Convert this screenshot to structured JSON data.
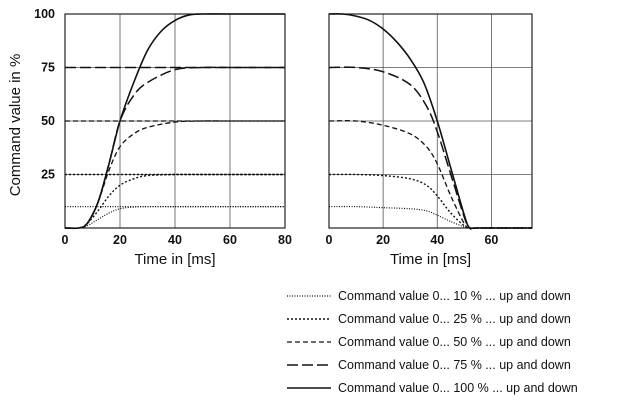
{
  "chart_data": [
    {
      "type": "line",
      "panel": "up",
      "xlabel": "Time in [ms]",
      "ylabel": "Command value in %",
      "xlim": [
        0,
        80
      ],
      "ylim": [
        0,
        100
      ],
      "xticks": [
        "0",
        "20",
        "40",
        "60",
        "80"
      ],
      "yticks": [
        "25",
        "50",
        "75",
        "100"
      ],
      "grid": true,
      "series": [
        {
          "name": "Command value 0... 10 % ... up and down",
          "x": [
            0,
            5,
            8,
            12,
            16,
            20,
            25,
            30,
            40,
            50,
            60,
            80
          ],
          "y": [
            10,
            10,
            10,
            10,
            10,
            10,
            10,
            10,
            10,
            10,
            10,
            10
          ]
        },
        {
          "name": "Command value 0... 25 % ... up and down",
          "x": [
            0,
            5,
            8,
            12,
            16,
            20,
            25,
            30,
            40,
            50,
            60,
            80
          ],
          "y": [
            25,
            25,
            25,
            25,
            25,
            25,
            25,
            25,
            25,
            25,
            25,
            25
          ]
        },
        {
          "name": "Command value 0... 50 % ... up and down",
          "x": [
            0,
            5,
            8,
            12,
            16,
            20,
            25,
            30,
            40,
            50,
            60,
            80
          ],
          "y": [
            50,
            50,
            50,
            50,
            50,
            50,
            50,
            50,
            50,
            50,
            50,
            50
          ]
        },
        {
          "name": "Command value 0... 75 % ... up and down",
          "x": [
            0,
            5,
            8,
            12,
            16,
            20,
            25,
            30,
            40,
            50,
            60,
            80
          ],
          "y": [
            75,
            75,
            75,
            75,
            75,
            75,
            75,
            75,
            75,
            75,
            75,
            75
          ]
        },
        {
          "name": "Command value 0... 100 % ... up and down",
          "x": [
            0,
            5,
            8,
            12,
            16,
            20,
            25,
            30,
            35,
            40,
            45,
            50,
            60,
            80
          ],
          "y": [
            0,
            0,
            2,
            12,
            30,
            50,
            68,
            83,
            92,
            97,
            99.5,
            100,
            100,
            100
          ]
        }
      ],
      "ramps": [
        {
          "level": 10,
          "x": [
            0,
            5,
            8,
            12,
            16,
            20,
            25,
            30,
            40,
            50,
            60,
            80
          ],
          "y": [
            0,
            0,
            1,
            4,
            7,
            9,
            9.8,
            10,
            10,
            10,
            10,
            10
          ]
        },
        {
          "level": 25,
          "x": [
            0,
            5,
            8,
            12,
            16,
            20,
            25,
            30,
            40,
            50,
            60,
            80
          ],
          "y": [
            0,
            0,
            2,
            8,
            15,
            20,
            23,
            24.5,
            25,
            25,
            25,
            25
          ]
        },
        {
          "level": 50,
          "x": [
            0,
            5,
            8,
            12,
            16,
            20,
            25,
            30,
            40,
            50,
            60,
            80
          ],
          "y": [
            0,
            0,
            2,
            12,
            27,
            38,
            44,
            47,
            49.5,
            50,
            50,
            50
          ]
        },
        {
          "level": 75,
          "x": [
            0,
            5,
            8,
            12,
            16,
            20,
            25,
            30,
            40,
            50,
            60,
            80
          ],
          "y": [
            0,
            0,
            2,
            12,
            30,
            50,
            62,
            68,
            74,
            75,
            75,
            75
          ]
        }
      ]
    },
    {
      "type": "line",
      "panel": "down",
      "xlabel": "Time in [ms]",
      "xlim": [
        0,
        75
      ],
      "ylim": [
        0,
        100
      ],
      "xticks": [
        "0",
        "20",
        "40",
        "60"
      ],
      "grid": true,
      "series": [
        {
          "name": "Command value 0... 10 % ... up and down",
          "x": [
            0,
            10,
            20,
            30,
            36,
            40,
            45,
            50,
            52,
            55,
            75
          ],
          "y": [
            10,
            10,
            9.5,
            9,
            8,
            6,
            3,
            0.5,
            0,
            0,
            0
          ]
        },
        {
          "name": "Command value 0... 25 % ... up and down",
          "x": [
            0,
            10,
            20,
            30,
            36,
            40,
            45,
            50,
            52,
            55,
            75
          ],
          "y": [
            25,
            25,
            24.5,
            23,
            20,
            15,
            7,
            1,
            0,
            0,
            0
          ]
        },
        {
          "name": "Command value 0... 50 % ... up and down",
          "x": [
            0,
            10,
            20,
            30,
            36,
            40,
            45,
            50,
            52,
            55,
            75
          ],
          "y": [
            50,
            50,
            48,
            44,
            38,
            30,
            15,
            2,
            0,
            0,
            0
          ]
        },
        {
          "name": "Command value 0... 75 % ... up and down",
          "x": [
            0,
            10,
            20,
            30,
            36,
            40,
            45,
            50,
            52,
            55,
            75
          ],
          "y": [
            75,
            75,
            73,
            67,
            57,
            45,
            25,
            5,
            0,
            0,
            0
          ]
        },
        {
          "name": "Command value 0... 100 % ... up and down",
          "x": [
            0,
            5,
            10,
            15,
            20,
            25,
            30,
            35,
            40,
            45,
            50,
            52,
            55,
            75
          ],
          "y": [
            100,
            100,
            99,
            97,
            93,
            87,
            79,
            68,
            50,
            28,
            6,
            0,
            0,
            0
          ]
        }
      ]
    }
  ],
  "legend": [
    {
      "label": "Command value 0... 10 % ... up and down",
      "style": "dotted-fine"
    },
    {
      "label": "Command value 0... 25 % ... up and down",
      "style": "dotted"
    },
    {
      "label": "Command value 0... 50 % ... up and down",
      "style": "dashed-short"
    },
    {
      "label": "Command value 0... 75 % ... up and down",
      "style": "dashed-long"
    },
    {
      "label": "Command value 0... 100 % ... up and down",
      "style": "solid"
    }
  ]
}
